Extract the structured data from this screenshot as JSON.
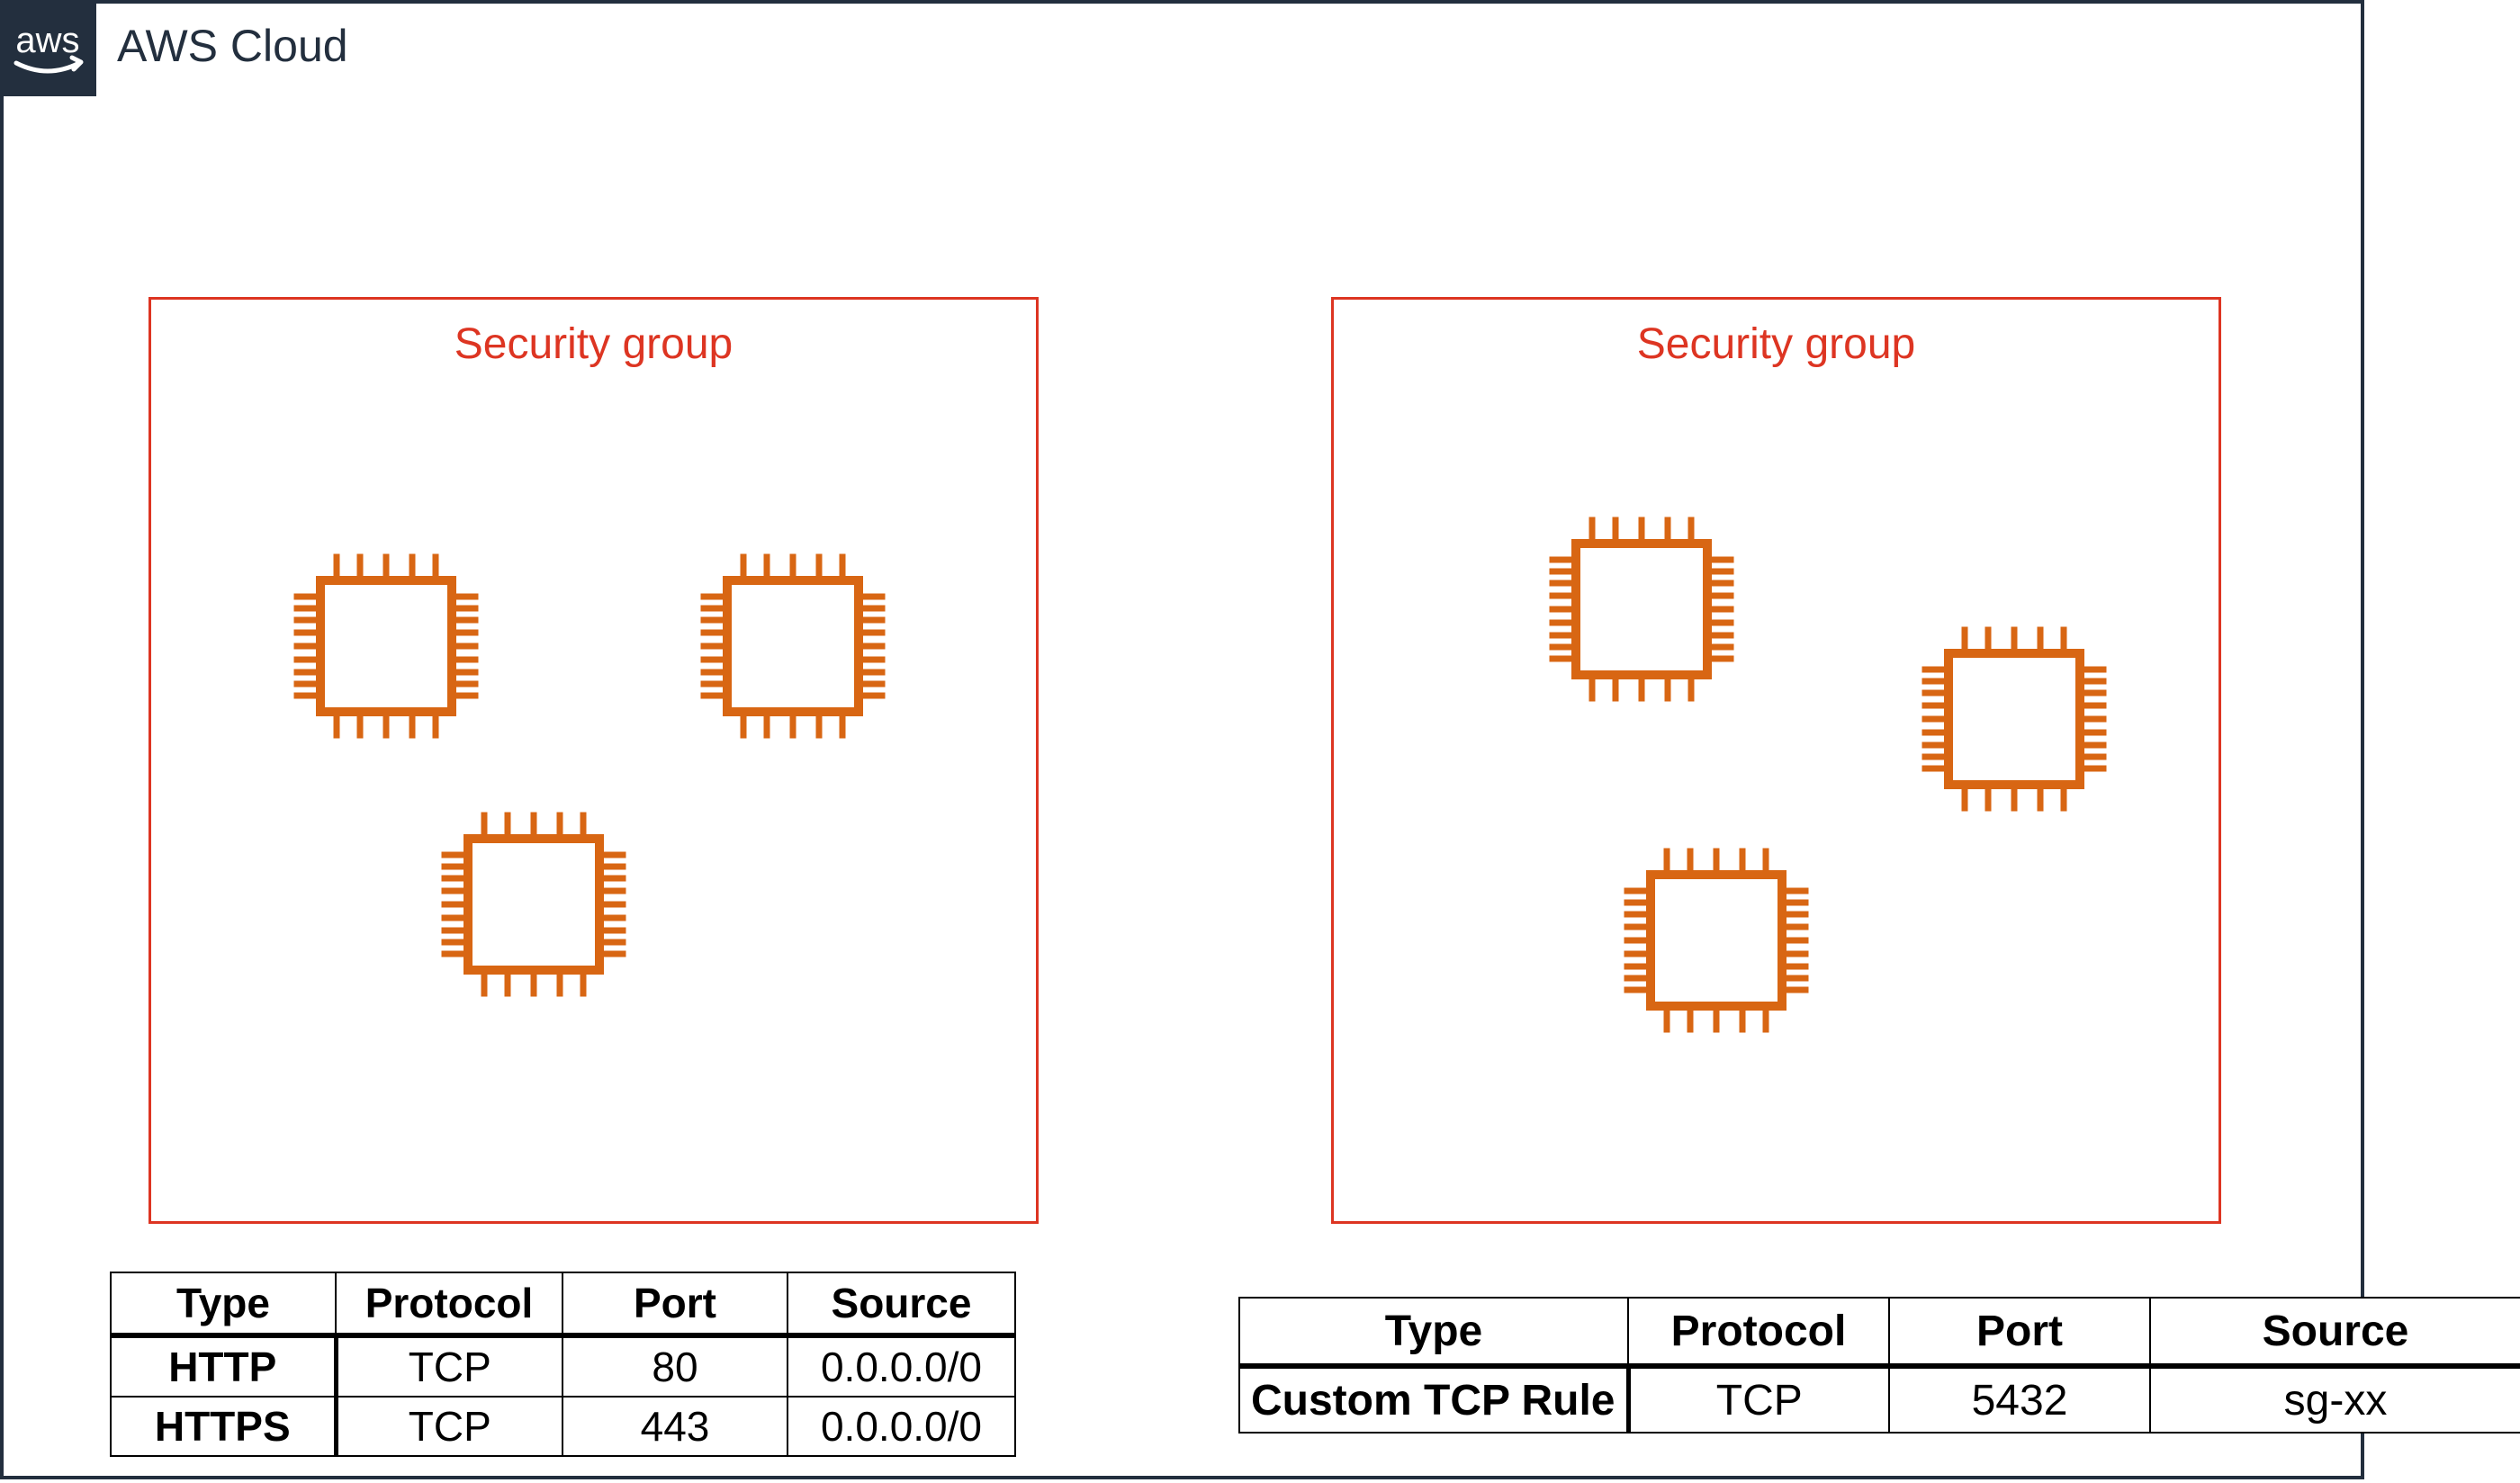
{
  "cloud": {
    "title": "AWS Cloud",
    "logo_text": "aws",
    "frame_color": "#232f3e"
  },
  "security_groups": [
    {
      "title": "Security group",
      "color": "#dd3522",
      "instances": [
        "ec2-instance-icon",
        "ec2-instance-icon",
        "ec2-instance-icon"
      ]
    },
    {
      "title": "Security group",
      "color": "#dd3522",
      "instances": [
        "ec2-instance-icon",
        "ec2-instance-icon",
        "ec2-instance-icon"
      ]
    }
  ],
  "instance_icon_color": "#d86613",
  "rules_left": {
    "headers": [
      "Type",
      "Protocol",
      "Port",
      "Source"
    ],
    "rows": [
      [
        "HTTP",
        "TCP",
        "80",
        "0.0.0.0/0"
      ],
      [
        "HTTPS",
        "TCP",
        "443",
        "0.0.0.0/0"
      ]
    ]
  },
  "rules_right": {
    "headers": [
      "Type",
      "Protocol",
      "Port",
      "Source"
    ],
    "rows": [
      [
        "Custom TCP Rule",
        "TCP",
        "5432",
        "sg-xx"
      ]
    ]
  }
}
